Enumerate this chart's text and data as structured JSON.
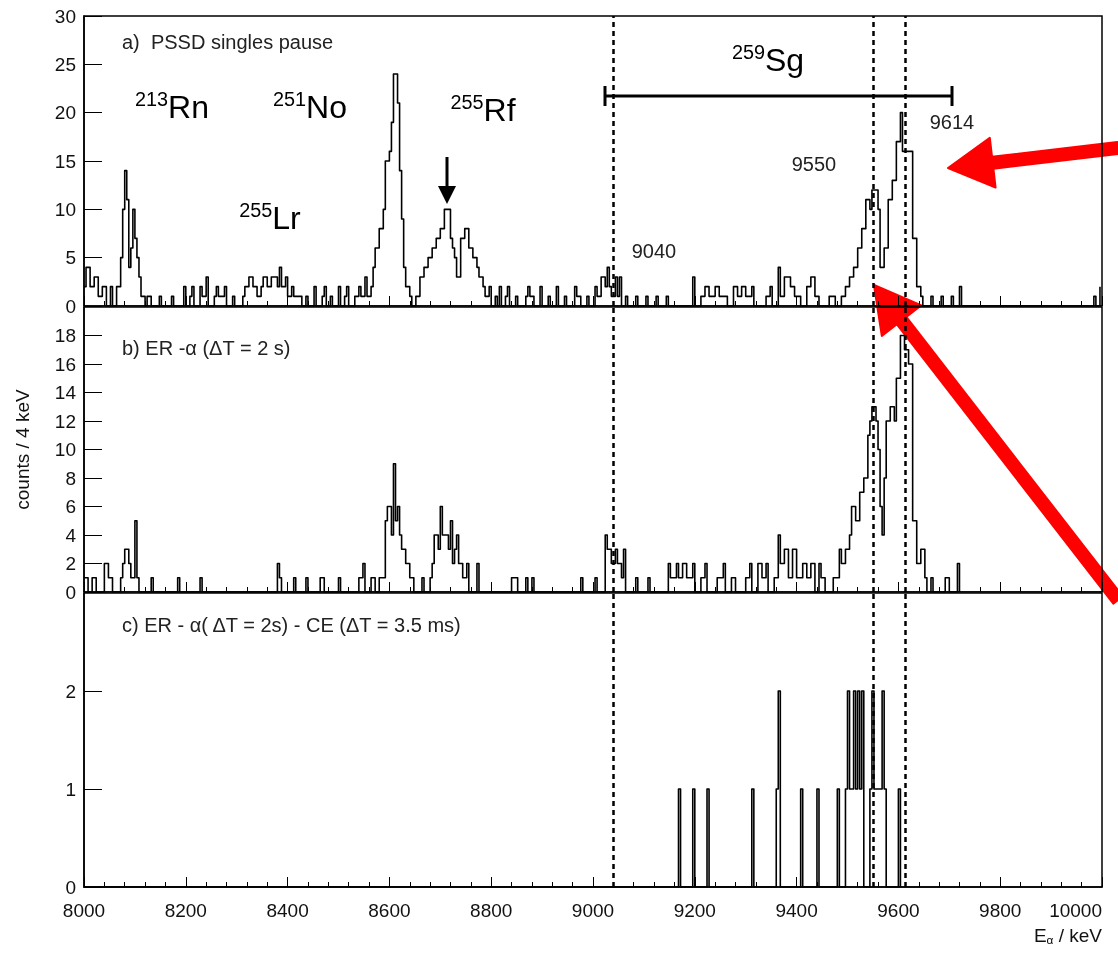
{
  "chart_data": [
    {
      "type": "step",
      "color": "#000000",
      "tick_labels": "y",
      "xlim": [
        8000,
        10000
      ],
      "xticks": [
        8000,
        8200,
        8400,
        8600,
        8800,
        9000,
        9200,
        9400,
        9600,
        9800,
        10000
      ],
      "ylim": [
        0,
        30
      ],
      "yticks": [
        0,
        5,
        10,
        15,
        20,
        25,
        30
      ],
      "annotations": [
        "a)  PSSD singles pause",
        "$^{213}$Rn",
        "$^{251}$No",
        "$^{255}$Lr",
        "$^{255}$Rf",
        "9040",
        "9550",
        "9614",
        "$^{259}$Sg"
      ],
      "ref_lines": [
        {
          "axis": "x",
          "value": 9040,
          "line_style": "dashed",
          "color": "#000000"
        },
        {
          "axis": "x",
          "value": 9550,
          "line_style": "dashed",
          "color": "#000000"
        },
        {
          "axis": "x",
          "value": 9614,
          "line_style": "dashed",
          "color": "#000000"
        }
      ],
      "x": [
        8000,
        8004,
        8012,
        8020,
        8028,
        8036,
        8044,
        8052,
        8056,
        8064,
        8072,
        8076,
        8080,
        8084,
        8088,
        8092,
        8096,
        8100,
        8104,
        8108,
        8112,
        8120,
        8124,
        8132,
        8148,
        8152,
        8172,
        8176,
        8196,
        8200,
        8208,
        8212,
        8216,
        8228,
        8232,
        8240,
        8244,
        8256,
        8260,
        8264,
        8276,
        8280,
        8292,
        8296,
        8312,
        8316,
        8324,
        8332,
        8340,
        8348,
        8352,
        8360,
        8368,
        8380,
        8384,
        8388,
        8396,
        8400,
        8408,
        8412,
        8428,
        8436,
        8440,
        8452,
        8456,
        8468,
        8472,
        8476,
        8484,
        8488,
        8500,
        8504,
        8512,
        8516,
        8520,
        8532,
        8540,
        8544,
        8552,
        8556,
        8564,
        8568,
        8572,
        8580,
        8588,
        8592,
        8600,
        8604,
        8608,
        8616,
        8620,
        8624,
        8628,
        8632,
        8640,
        8644,
        8652,
        8660,
        8668,
        8676,
        8684,
        8692,
        8700,
        8708,
        8716,
        8720,
        8724,
        8728,
        8732,
        8740,
        8748,
        8756,
        8764,
        8772,
        8776,
        8784,
        8788,
        8796,
        8800,
        8808,
        8812,
        8816,
        8820,
        8828,
        8832,
        8836,
        8848,
        8852,
        8868,
        8872,
        8876,
        8884,
        8896,
        8900,
        8912,
        8916,
        8928,
        8932,
        8944,
        8948,
        8964,
        8968,
        8976,
        8988,
        8992,
        9004,
        9008,
        9016,
        9024,
        9028,
        9032,
        9036,
        9044,
        9048,
        9052,
        9056,
        9064,
        9068,
        9084,
        9088,
        9104,
        9108,
        9124,
        9128,
        9144,
        9148,
        9196,
        9200,
        9212,
        9220,
        9228,
        9240,
        9248,
        9264,
        9276,
        9284,
        9292,
        9300,
        9312,
        9316,
        9340,
        9348,
        9352,
        9364,
        9368,
        9376,
        9388,
        9396,
        9408,
        9420,
        9428,
        9436,
        9444,
        9464,
        9476,
        9488,
        9496,
        9504,
        9512,
        9520,
        9528,
        9536,
        9544,
        9548,
        9556,
        9560,
        9564,
        9572,
        9580,
        9588,
        9596,
        9604,
        9608,
        9616,
        9628,
        9636,
        9644,
        9648,
        9664,
        9668,
        9684,
        9688,
        9704,
        9708,
        9720,
        9724,
        9984,
        9988,
        9996
      ],
      "values": [
        2,
        4,
        2,
        3,
        1,
        2,
        0,
        2,
        0,
        2,
        5,
        10,
        14,
        11,
        4,
        6,
        10,
        7,
        5,
        3,
        1,
        0,
        1,
        0,
        1,
        0,
        1,
        0,
        2,
        0,
        1,
        2,
        0,
        2,
        1,
        3,
        0,
        1,
        2,
        1,
        2,
        0,
        1,
        0,
        1,
        2,
        3,
        2,
        1,
        2,
        3,
        2,
        3,
        2,
        4,
        2,
        3,
        1,
        2,
        1,
        0,
        1,
        0,
        2,
        0,
        1,
        2,
        0,
        1,
        0,
        2,
        0,
        1,
        2,
        0,
        1,
        2,
        1,
        3,
        1,
        2,
        4,
        6,
        8,
        10,
        15,
        16,
        19,
        24,
        21,
        14,
        9,
        4,
        2,
        1,
        0,
        1,
        3,
        4,
        5,
        6,
        7,
        8,
        10,
        10,
        7,
        6,
        5,
        3,
        7,
        8,
        6,
        5,
        4,
        3,
        2,
        1,
        2,
        0,
        1,
        0,
        2,
        0,
        1,
        2,
        0,
        1,
        0,
        1,
        2,
        1,
        0,
        2,
        0,
        1,
        0,
        2,
        0,
        1,
        0,
        2,
        1,
        0,
        1,
        0,
        2,
        1,
        3,
        2,
        4,
        2,
        1,
        3,
        1,
        3,
        0,
        1,
        0,
        1,
        0,
        1,
        0,
        1,
        0,
        1,
        0,
        3,
        0,
        1,
        2,
        1,
        2,
        1,
        0,
        2,
        1,
        2,
        1,
        2,
        0,
        1,
        2,
        0,
        4,
        1,
        3,
        2,
        1,
        0,
        2,
        3,
        1,
        0,
        1,
        0,
        1,
        2,
        3,
        4,
        6,
        8,
        11,
        10,
        12,
        12,
        10,
        4,
        6,
        11,
        13,
        17,
        20,
        16,
        16,
        7,
        2,
        1,
        0,
        1,
        0,
        1,
        0,
        1,
        0,
        2,
        0,
        1,
        0,
        2
      ]
    },
    {
      "type": "step",
      "color": "#000000",
      "tick_labels": "y",
      "xlim": [
        8000,
        10000
      ],
      "xticks": [
        8000,
        8200,
        8400,
        8600,
        8800,
        9000,
        9200,
        9400,
        9600,
        9800,
        10000
      ],
      "ylim": [
        0,
        20
      ],
      "yticks": [
        0,
        2,
        4,
        6,
        8,
        10,
        12,
        14,
        16,
        18
      ],
      "ylabel": "counts / 4 keV",
      "annotations": [
        "b) ER -α (ΔT = 2 s)"
      ],
      "ref_lines": [
        {
          "axis": "x",
          "value": 9040,
          "line_style": "dashed",
          "color": "#000000"
        },
        {
          "axis": "x",
          "value": 9550,
          "line_style": "dashed",
          "color": "#000000"
        },
        {
          "axis": "x",
          "value": 9614,
          "line_style": "dashed",
          "color": "#000000"
        }
      ],
      "x": [
        8000,
        8008,
        8016,
        8024,
        8040,
        8048,
        8056,
        8072,
        8076,
        8080,
        8088,
        8092,
        8100,
        8104,
        8108,
        8132,
        8136,
        8184,
        8188,
        8228,
        8232,
        8380,
        8384,
        8388,
        8412,
        8416,
        8436,
        8440,
        8464,
        8472,
        8500,
        8504,
        8540,
        8548,
        8552,
        8564,
        8572,
        8580,
        8592,
        8596,
        8604,
        8608,
        8612,
        8616,
        8620,
        8624,
        8632,
        8640,
        8648,
        8664,
        8668,
        8680,
        8684,
        8688,
        8696,
        8700,
        8704,
        8716,
        8720,
        8724,
        8728,
        8732,
        8736,
        8744,
        8752,
        8756,
        8772,
        8776,
        8840,
        8852,
        8868,
        8872,
        8880,
        8884,
        8976,
        8980,
        9004,
        9008,
        9024,
        9028,
        9036,
        9044,
        9048,
        9056,
        9060,
        9064,
        9084,
        9088,
        9108,
        9112,
        9148,
        9152,
        9164,
        9168,
        9176,
        9184,
        9196,
        9200,
        9212,
        9220,
        9224,
        9244,
        9256,
        9260,
        9272,
        9280,
        9300,
        9308,
        9312,
        9324,
        9332,
        9340,
        9344,
        9356,
        9364,
        9368,
        9376,
        9384,
        9392,
        9400,
        9412,
        9420,
        9428,
        9436,
        9444,
        9448,
        9456,
        9472,
        9484,
        9488,
        9496,
        9504,
        9508,
        9516,
        9524,
        9532,
        9540,
        9544,
        9548,
        9556,
        9560,
        9564,
        9568,
        9572,
        9576,
        9584,
        9592,
        9596,
        9604,
        9612,
        9620,
        9624,
        9628,
        9636,
        9644,
        9652,
        9656,
        9664,
        9668,
        9692,
        9700,
        9716,
        9720
      ],
      "values": [
        1,
        0,
        1,
        0,
        2,
        1,
        0,
        1,
        2,
        3,
        2,
        1,
        5,
        1,
        0,
        1,
        0,
        1,
        0,
        1,
        0,
        2,
        1,
        0,
        1,
        0,
        1,
        0,
        1,
        0,
        1,
        0,
        1,
        2,
        0,
        1,
        0,
        1,
        5,
        6,
        4,
        9,
        5,
        6,
        4,
        3,
        2,
        1,
        0,
        1,
        0,
        1,
        2,
        4,
        3,
        6,
        4,
        3,
        5,
        2,
        3,
        4,
        2,
        1,
        2,
        0,
        2,
        0,
        1,
        0,
        1,
        0,
        1,
        0,
        1,
        0,
        1,
        0,
        4,
        3,
        2,
        3,
        2,
        1,
        3,
        0,
        1,
        0,
        1,
        0,
        2,
        1,
        2,
        1,
        2,
        1,
        2,
        0,
        1,
        2,
        0,
        1,
        2,
        0,
        1,
        0,
        1,
        2,
        0,
        2,
        1,
        2,
        0,
        1,
        4,
        2,
        3,
        1,
        3,
        1,
        2,
        1,
        2,
        0,
        2,
        1,
        0,
        1,
        3,
        2,
        3,
        4,
        6,
        5,
        7,
        8,
        11,
        12,
        13,
        12,
        10,
        6,
        4,
        8,
        12,
        13,
        12,
        15,
        18,
        17,
        16,
        16,
        5,
        2,
        3,
        1,
        0,
        1,
        0,
        1,
        0,
        2,
        0
      ]
    },
    {
      "type": "step",
      "color": "#000000",
      "xlim": [
        8000,
        10000
      ],
      "xticks": [
        8000,
        8200,
        8400,
        8600,
        8800,
        9000,
        9200,
        9400,
        9600,
        9800,
        10000
      ],
      "ylim": [
        0,
        3
      ],
      "yticks": [
        0,
        1,
        2
      ],
      "xlabel": "E$_{α}$ / keV",
      "annotations": [
        "c) ER - α( ΔT = 2s) - CE (ΔT = 3.5 ms)"
      ],
      "ref_lines": [
        {
          "axis": "x",
          "value": 9040,
          "line_style": "dashed",
          "color": "#000000"
        },
        {
          "axis": "x",
          "value": 9550,
          "line_style": "dashed",
          "color": "#000000"
        },
        {
          "axis": "x",
          "value": 9614,
          "line_style": "dashed",
          "color": "#000000"
        }
      ],
      "x": [
        8000,
        9168,
        9172,
        9196,
        9200,
        9224,
        9228,
        9312,
        9316,
        9360,
        9364,
        9368,
        9408,
        9412,
        9440,
        9444,
        9480,
        9484,
        9496,
        9500,
        9504,
        9512,
        9516,
        9520,
        9524,
        9528,
        9532,
        9544,
        9548,
        9552,
        9568,
        9572,
        9576,
        9600,
        9604
      ],
      "values": [
        0,
        1,
        0,
        1,
        0,
        1,
        0,
        1,
        0,
        1,
        2,
        0,
        1,
        0,
        1,
        0,
        1,
        0,
        1,
        2,
        1,
        2,
        1,
        2,
        1,
        2,
        0,
        1,
        2,
        1,
        2,
        1,
        0,
        1,
        0
      ]
    }
  ]
}
